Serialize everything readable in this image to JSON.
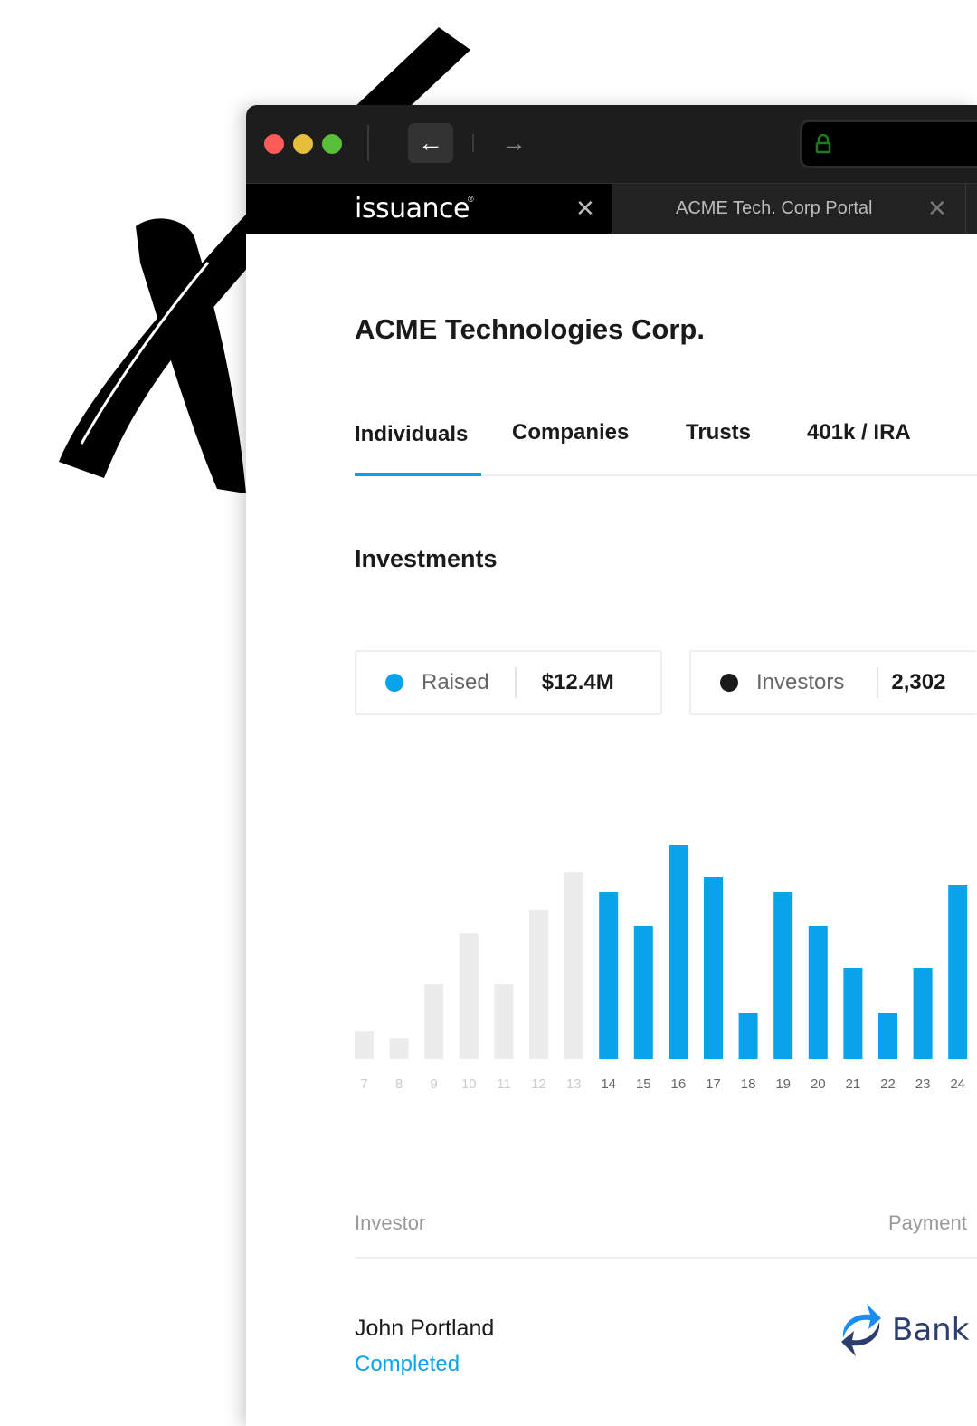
{
  "browser": {
    "tabs": [
      {
        "label": "issuance",
        "logo": true
      },
      {
        "label": "ACME Tech. Corp Portal"
      }
    ],
    "icons": [
      "back-arrow-icon",
      "forward-arrow-icon",
      "lock-icon",
      "close-icon"
    ]
  },
  "page": {
    "title": "ACME Technologies Corp.",
    "nav_tabs": [
      {
        "label": "Individuals",
        "active": true
      },
      {
        "label": "Companies"
      },
      {
        "label": "Trusts"
      },
      {
        "label": "401k / IRA"
      }
    ],
    "section_title": "Investments",
    "stats": [
      {
        "label": "Raised",
        "value": "$12.4M",
        "color": "#0aa3ea"
      },
      {
        "label": "Investors",
        "value": "2,302",
        "color": "#1a1a1a"
      }
    ],
    "table": {
      "headers": [
        "Investor",
        "Payment"
      ],
      "rows": [
        {
          "investor": "John Portland",
          "status": "Completed",
          "payment": "Bank"
        }
      ]
    }
  },
  "colors": {
    "accent": "#0aa3ea",
    "inactive_bar": "#ececec"
  },
  "chart_data": {
    "type": "bar",
    "categories": [
      "7",
      "8",
      "9",
      "10",
      "11",
      "12",
      "13",
      "14",
      "15",
      "16",
      "17",
      "18",
      "19",
      "20",
      "21",
      "22",
      "23",
      "24"
    ],
    "values": [
      31,
      23,
      83,
      139,
      83,
      165,
      207,
      185,
      147,
      237,
      201,
      51,
      185,
      147,
      101,
      51,
      101,
      193
    ],
    "highlighted_from": "14",
    "grid": false,
    "title": "",
    "xlabel": "",
    "ylabel": ""
  }
}
